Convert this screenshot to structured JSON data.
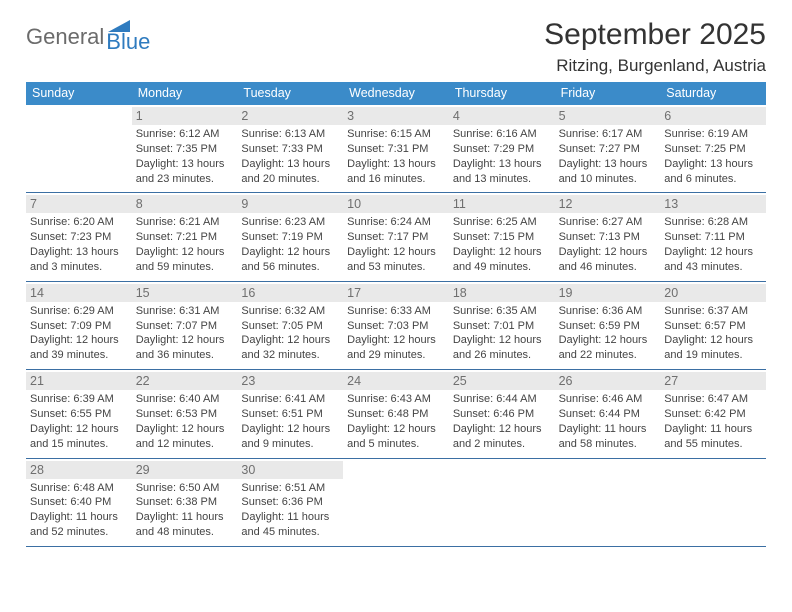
{
  "logo": {
    "part1": "General",
    "part2": "Blue"
  },
  "title": "September 2025",
  "location": "Ritzing, Burgenland, Austria",
  "dow": [
    "Sunday",
    "Monday",
    "Tuesday",
    "Wednesday",
    "Thursday",
    "Friday",
    "Saturday"
  ],
  "colors": {
    "header_bg": "#3b8bc9",
    "row_border": "#3b6fa3",
    "daynum_bg": "#e9e9e9",
    "logo_blue": "#2f7bbf"
  },
  "weeks": [
    [
      {
        "n": "",
        "empty": true
      },
      {
        "n": "1",
        "sr": "Sunrise: 6:12 AM",
        "ss": "Sunset: 7:35 PM",
        "dl": "Daylight: 13 hours and 23 minutes."
      },
      {
        "n": "2",
        "sr": "Sunrise: 6:13 AM",
        "ss": "Sunset: 7:33 PM",
        "dl": "Daylight: 13 hours and 20 minutes."
      },
      {
        "n": "3",
        "sr": "Sunrise: 6:15 AM",
        "ss": "Sunset: 7:31 PM",
        "dl": "Daylight: 13 hours and 16 minutes."
      },
      {
        "n": "4",
        "sr": "Sunrise: 6:16 AM",
        "ss": "Sunset: 7:29 PM",
        "dl": "Daylight: 13 hours and 13 minutes."
      },
      {
        "n": "5",
        "sr": "Sunrise: 6:17 AM",
        "ss": "Sunset: 7:27 PM",
        "dl": "Daylight: 13 hours and 10 minutes."
      },
      {
        "n": "6",
        "sr": "Sunrise: 6:19 AM",
        "ss": "Sunset: 7:25 PM",
        "dl": "Daylight: 13 hours and 6 minutes."
      }
    ],
    [
      {
        "n": "7",
        "sr": "Sunrise: 6:20 AM",
        "ss": "Sunset: 7:23 PM",
        "dl": "Daylight: 13 hours and 3 minutes."
      },
      {
        "n": "8",
        "sr": "Sunrise: 6:21 AM",
        "ss": "Sunset: 7:21 PM",
        "dl": "Daylight: 12 hours and 59 minutes."
      },
      {
        "n": "9",
        "sr": "Sunrise: 6:23 AM",
        "ss": "Sunset: 7:19 PM",
        "dl": "Daylight: 12 hours and 56 minutes."
      },
      {
        "n": "10",
        "sr": "Sunrise: 6:24 AM",
        "ss": "Sunset: 7:17 PM",
        "dl": "Daylight: 12 hours and 53 minutes."
      },
      {
        "n": "11",
        "sr": "Sunrise: 6:25 AM",
        "ss": "Sunset: 7:15 PM",
        "dl": "Daylight: 12 hours and 49 minutes."
      },
      {
        "n": "12",
        "sr": "Sunrise: 6:27 AM",
        "ss": "Sunset: 7:13 PM",
        "dl": "Daylight: 12 hours and 46 minutes."
      },
      {
        "n": "13",
        "sr": "Sunrise: 6:28 AM",
        "ss": "Sunset: 7:11 PM",
        "dl": "Daylight: 12 hours and 43 minutes."
      }
    ],
    [
      {
        "n": "14",
        "sr": "Sunrise: 6:29 AM",
        "ss": "Sunset: 7:09 PM",
        "dl": "Daylight: 12 hours and 39 minutes."
      },
      {
        "n": "15",
        "sr": "Sunrise: 6:31 AM",
        "ss": "Sunset: 7:07 PM",
        "dl": "Daylight: 12 hours and 36 minutes."
      },
      {
        "n": "16",
        "sr": "Sunrise: 6:32 AM",
        "ss": "Sunset: 7:05 PM",
        "dl": "Daylight: 12 hours and 32 minutes."
      },
      {
        "n": "17",
        "sr": "Sunrise: 6:33 AM",
        "ss": "Sunset: 7:03 PM",
        "dl": "Daylight: 12 hours and 29 minutes."
      },
      {
        "n": "18",
        "sr": "Sunrise: 6:35 AM",
        "ss": "Sunset: 7:01 PM",
        "dl": "Daylight: 12 hours and 26 minutes."
      },
      {
        "n": "19",
        "sr": "Sunrise: 6:36 AM",
        "ss": "Sunset: 6:59 PM",
        "dl": "Daylight: 12 hours and 22 minutes."
      },
      {
        "n": "20",
        "sr": "Sunrise: 6:37 AM",
        "ss": "Sunset: 6:57 PM",
        "dl": "Daylight: 12 hours and 19 minutes."
      }
    ],
    [
      {
        "n": "21",
        "sr": "Sunrise: 6:39 AM",
        "ss": "Sunset: 6:55 PM",
        "dl": "Daylight: 12 hours and 15 minutes."
      },
      {
        "n": "22",
        "sr": "Sunrise: 6:40 AM",
        "ss": "Sunset: 6:53 PM",
        "dl": "Daylight: 12 hours and 12 minutes."
      },
      {
        "n": "23",
        "sr": "Sunrise: 6:41 AM",
        "ss": "Sunset: 6:51 PM",
        "dl": "Daylight: 12 hours and 9 minutes."
      },
      {
        "n": "24",
        "sr": "Sunrise: 6:43 AM",
        "ss": "Sunset: 6:48 PM",
        "dl": "Daylight: 12 hours and 5 minutes."
      },
      {
        "n": "25",
        "sr": "Sunrise: 6:44 AM",
        "ss": "Sunset: 6:46 PM",
        "dl": "Daylight: 12 hours and 2 minutes."
      },
      {
        "n": "26",
        "sr": "Sunrise: 6:46 AM",
        "ss": "Sunset: 6:44 PM",
        "dl": "Daylight: 11 hours and 58 minutes."
      },
      {
        "n": "27",
        "sr": "Sunrise: 6:47 AM",
        "ss": "Sunset: 6:42 PM",
        "dl": "Daylight: 11 hours and 55 minutes."
      }
    ],
    [
      {
        "n": "28",
        "sr": "Sunrise: 6:48 AM",
        "ss": "Sunset: 6:40 PM",
        "dl": "Daylight: 11 hours and 52 minutes."
      },
      {
        "n": "29",
        "sr": "Sunrise: 6:50 AM",
        "ss": "Sunset: 6:38 PM",
        "dl": "Daylight: 11 hours and 48 minutes."
      },
      {
        "n": "30",
        "sr": "Sunrise: 6:51 AM",
        "ss": "Sunset: 6:36 PM",
        "dl": "Daylight: 11 hours and 45 minutes."
      },
      {
        "n": "",
        "empty": true
      },
      {
        "n": "",
        "empty": true
      },
      {
        "n": "",
        "empty": true
      },
      {
        "n": "",
        "empty": true
      }
    ]
  ]
}
